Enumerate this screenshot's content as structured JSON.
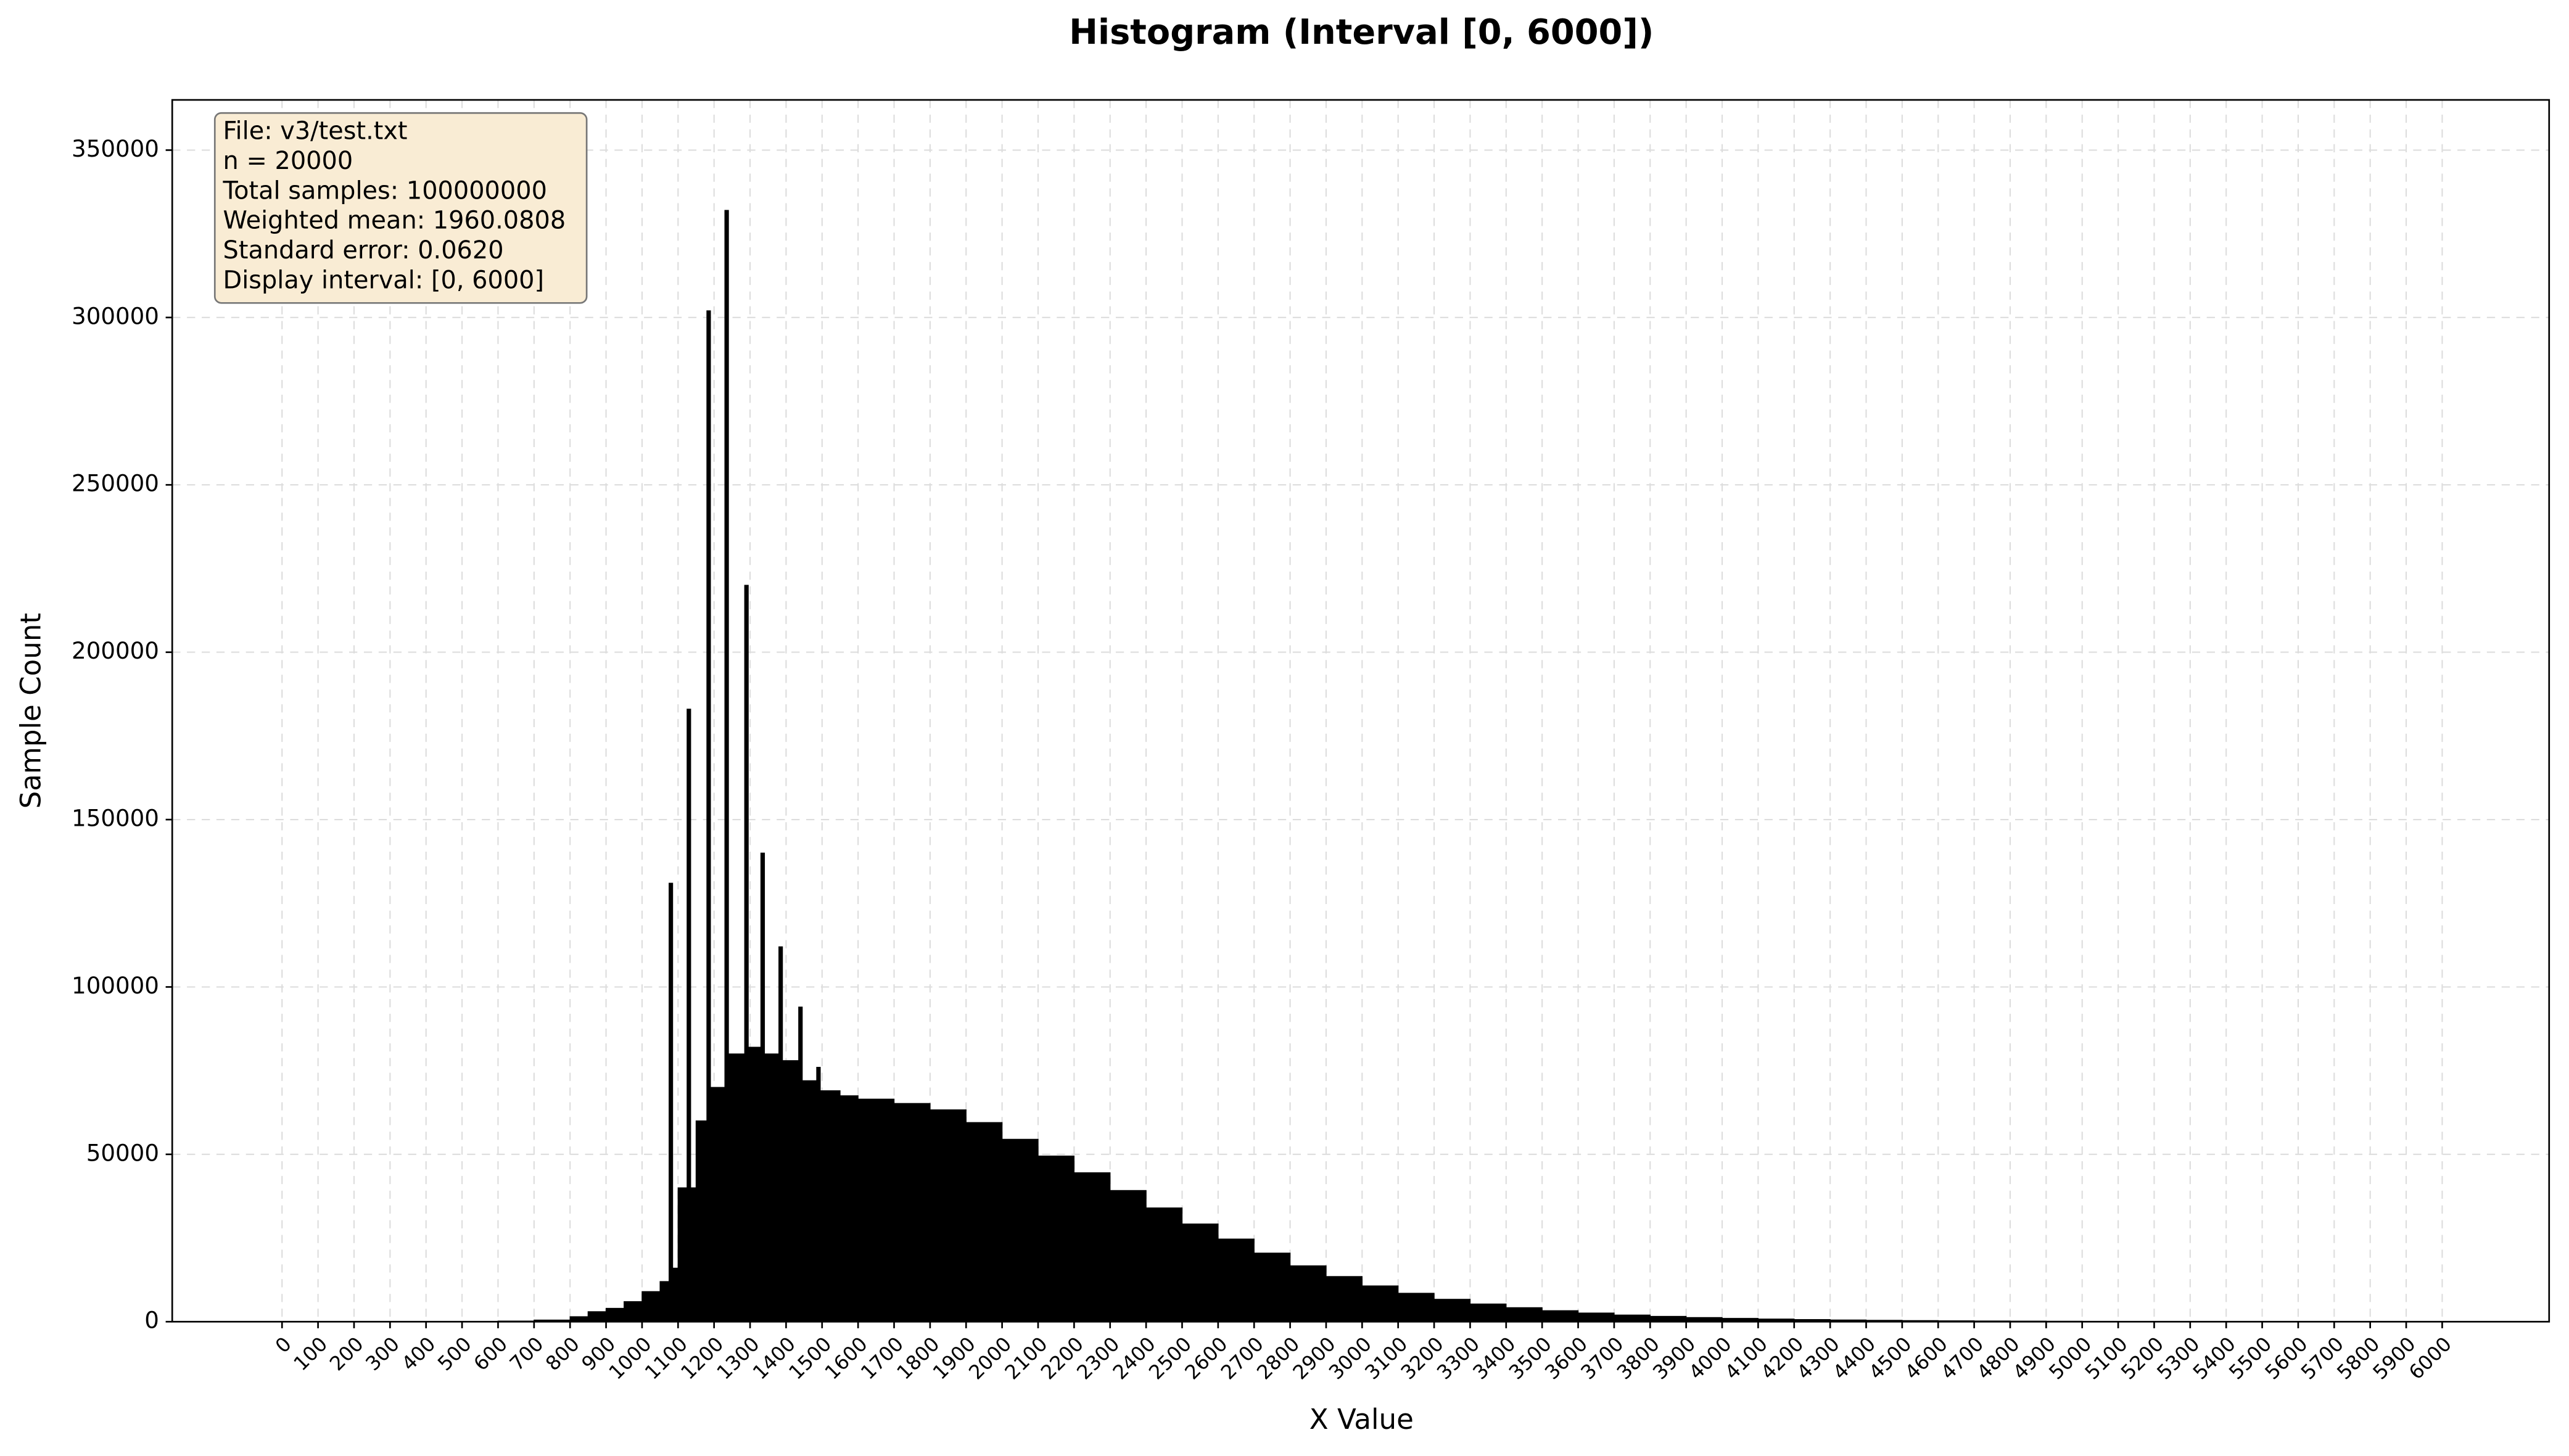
{
  "chart_data": {
    "type": "histogram",
    "title": "Histogram (Interval [0, 6000])",
    "x_label": "X Value",
    "y_label": "Sample Count",
    "textbox": [
      "File: v3/test.txt",
      "n = 20000",
      "Total samples: 100000000",
      "Weighted mean: 1960.0808",
      "Standard error: 0.0620",
      "Display interval: [0, 6000]"
    ],
    "bins": [
      0,
      100,
      200,
      300,
      400,
      500,
      600,
      700,
      800,
      850,
      900,
      950,
      1000,
      1050,
      1075,
      1085,
      1100,
      1125,
      1135,
      1150,
      1180,
      1190,
      1230,
      1240,
      1285,
      1295,
      1330,
      1340,
      1380,
      1390,
      1435,
      1445,
      1485,
      1495,
      1550,
      1600,
      1700,
      1800,
      1900,
      2000,
      2100,
      2200,
      2300,
      2400,
      2500,
      2600,
      2700,
      2800,
      2900,
      3000,
      3100,
      3200,
      3300,
      3400,
      3500,
      3600,
      3700,
      3800,
      3900,
      4000,
      4100,
      4200,
      4300,
      4400,
      4500,
      4600,
      4700,
      4800,
      4900,
      5000,
      5100,
      5200,
      5300,
      5400,
      5500,
      5600,
      5700,
      5800,
      5900,
      6000
    ],
    "values": [
      0,
      0,
      0,
      0,
      0,
      0,
      200,
      500,
      1500,
      3000,
      4000,
      6000,
      9000,
      12000,
      131000,
      16000,
      40000,
      183000,
      40000,
      60000,
      302000,
      70000,
      332000,
      80000,
      220000,
      82000,
      140000,
      80000,
      112000,
      78000,
      94000,
      72000,
      76000,
      69000,
      67500,
      66500,
      65200,
      63300,
      59500,
      54500,
      49500,
      44500,
      39200,
      34000,
      29200,
      24700,
      20500,
      16700,
      13500,
      10700,
      8500,
      6700,
      5300,
      4200,
      3300,
      2600,
      2000,
      1600,
      1250,
      1000,
      800,
      650,
      520,
      420,
      340,
      270,
      220,
      180,
      140,
      110,
      85,
      65,
      50,
      40,
      30,
      25,
      20,
      15,
      10
    ],
    "color": "#000000",
    "xlim": [
      -305,
      6297
    ],
    "ylim": [
      0,
      365000
    ],
    "xticks": [
      0,
      100,
      200,
      300,
      400,
      500,
      600,
      700,
      800,
      900,
      1000,
      1100,
      1200,
      1300,
      1400,
      1500,
      1600,
      1700,
      1800,
      1900,
      2000,
      2100,
      2200,
      2300,
      2400,
      2500,
      2600,
      2700,
      2800,
      2900,
      3000,
      3100,
      3200,
      3300,
      3400,
      3500,
      3600,
      3700,
      3800,
      3900,
      4000,
      4100,
      4200,
      4300,
      4400,
      4500,
      4600,
      4700,
      4800,
      4900,
      5000,
      5100,
      5200,
      5300,
      5400,
      5500,
      5600,
      5700,
      5800,
      5900,
      6000
    ],
    "yticks": [
      0,
      50000,
      100000,
      150000,
      200000,
      250000,
      300000,
      350000
    ],
    "grid": true
  }
}
